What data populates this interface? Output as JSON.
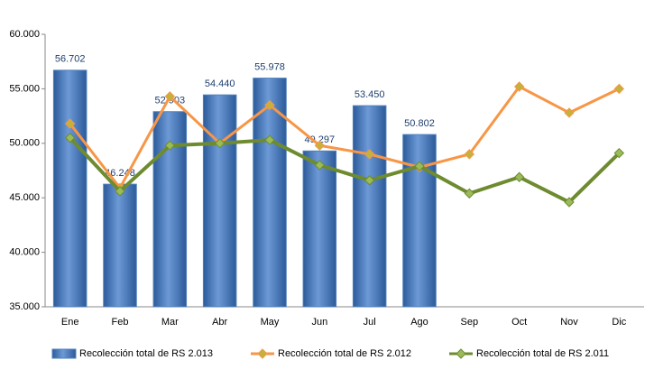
{
  "chart_data": {
    "type": "bar",
    "categories": [
      "Ene",
      "Feb",
      "Mar",
      "Abr",
      "May",
      "Jun",
      "Jul",
      "Ago",
      "Sep",
      "Oct",
      "Nov",
      "Dic"
    ],
    "series": [
      {
        "name": "Recolección total de RS 2.013",
        "type": "bar",
        "color": "#4f81bd",
        "values": [
          56702,
          46248,
          52903,
          54440,
          55978,
          49297,
          53450,
          50802,
          null,
          null,
          null,
          null
        ],
        "value_labels": [
          "56.702",
          "46.248",
          "52.903",
          "54.440",
          "55.978",
          "49.297",
          "53.450",
          "50.802",
          null,
          null,
          null,
          null
        ]
      },
      {
        "name": "Recolección total de RS 2.012",
        "type": "line",
        "color": "#f79646",
        "marker_color": "#c3b33a",
        "values": [
          51800,
          45900,
          54300,
          50000,
          53500,
          49800,
          49000,
          47800,
          49000,
          55200,
          52800,
          55000
        ]
      },
      {
        "name": "Recolección total de RS 2.011",
        "type": "line",
        "color": "#6e8b30",
        "marker_color": "#9bbb59",
        "values": [
          50500,
          45600,
          49800,
          50000,
          50300,
          48000,
          46600,
          47900,
          45400,
          46900,
          44600,
          49100
        ]
      }
    ],
    "ylim": [
      35000,
      60000
    ],
    "yticks": [
      {
        "value": 35000,
        "label": "35.000"
      },
      {
        "value": 40000,
        "label": "40.000"
      },
      {
        "value": 45000,
        "label": "45.000"
      },
      {
        "value": 50000,
        "label": "50.000"
      },
      {
        "value": 55000,
        "label": "55.000"
      },
      {
        "value": 60000,
        "label": "60.000"
      }
    ],
    "grid": false,
    "legend": "bottom"
  }
}
